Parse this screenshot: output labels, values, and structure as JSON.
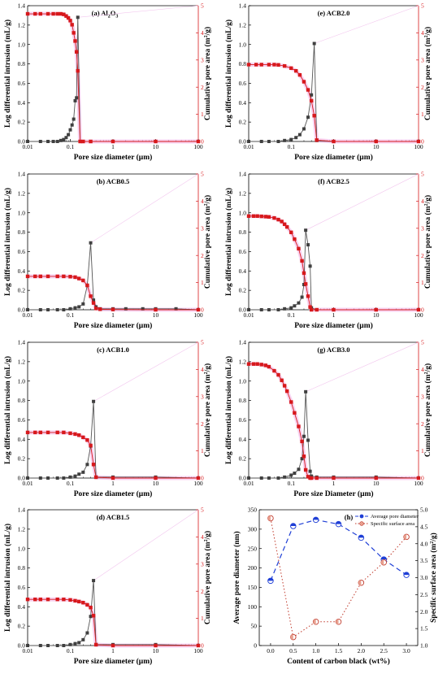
{
  "chart_data": [
    {
      "type": "line",
      "title": "(a) Al2O3",
      "title_parts": {
        "main": "(a) Al",
        "s1": "2",
        "mid": "O",
        "s2": "3"
      },
      "xlabel": "Pore size diameter (μm)",
      "ylabel": "Log differential intrusion (mL/g)",
      "y2label": "Cumulative pore area (m2/g)",
      "y2label_parts": {
        "main": "Cumulative pore area (m",
        "sup": "2",
        "end": "/g)"
      },
      "xscale": "log",
      "xlim": [
        0.01,
        100
      ],
      "ylim": [
        0,
        1.4
      ],
      "y2lim": [
        0,
        5
      ],
      "xticks": [
        "0.01",
        "0.1",
        "1",
        "10",
        "100"
      ],
      "yticks": [
        "0.0",
        "0.2",
        "0.4",
        "0.6",
        "0.8",
        "1.0",
        "1.2",
        "1.4"
      ],
      "y2ticks": [
        "0",
        "1",
        "2",
        "3",
        "4",
        "5"
      ],
      "series": [
        {
          "role": "intrusion",
          "axis": "left",
          "color": "#404040",
          "x": [
            0.01,
            0.02,
            0.03,
            0.04,
            0.05,
            0.06,
            0.07,
            0.08,
            0.09,
            0.1,
            0.11,
            0.12,
            0.13,
            0.14,
            0.15,
            0.17,
            0.2,
            0.3,
            1,
            10,
            100
          ],
          "y": [
            0,
            0,
            0,
            0,
            0,
            0.01,
            0.02,
            0.04,
            0.07,
            0.12,
            0.17,
            0.23,
            0.42,
            0.45,
            1.28,
            0,
            0,
            0,
            0,
            0,
            0
          ]
        },
        {
          "role": "area",
          "axis": "right",
          "color": "#d7191c",
          "x": [
            0.01,
            0.015,
            0.02,
            0.03,
            0.04,
            0.05,
            0.06,
            0.07,
            0.08,
            0.09,
            0.1,
            0.11,
            0.12,
            0.13,
            0.14,
            0.15,
            0.17,
            0.2,
            0.3,
            1,
            10,
            100
          ],
          "y": [
            4.7,
            4.7,
            4.7,
            4.7,
            4.7,
            4.7,
            4.7,
            4.68,
            4.62,
            4.55,
            4.45,
            4.3,
            4.0,
            3.7,
            3.3,
            2.6,
            0,
            0,
            0,
            0,
            0,
            0
          ]
        }
      ]
    },
    {
      "type": "line",
      "title": "(b) ACB0.5",
      "xlabel": "Pore size diameter (μm)",
      "ylabel": "Log differential intrusion (mL/g)",
      "y2label": "Cumulative pore area (m2/g)",
      "y2label_parts": {
        "main": "Cumulative pore area (m",
        "sup": "2",
        "end": "/g)"
      },
      "xscale": "log",
      "xlim": [
        0.01,
        100
      ],
      "ylim": [
        0,
        1.4
      ],
      "y2lim": [
        0,
        5
      ],
      "xticks": [
        "0.01",
        "0.1",
        "1",
        "10",
        "100"
      ],
      "yticks": [
        "0.0",
        "0.2",
        "0.4",
        "0.6",
        "0.8",
        "1.0",
        "1.2",
        "1.4"
      ],
      "y2ticks": [
        "0",
        "1",
        "2",
        "3",
        "4",
        "5"
      ],
      "series": [
        {
          "role": "intrusion",
          "axis": "left",
          "color": "#404040",
          "x": [
            0.01,
            0.02,
            0.03,
            0.05,
            0.07,
            0.1,
            0.13,
            0.16,
            0.2,
            0.25,
            0.3,
            0.35,
            0.4,
            0.5,
            1,
            2,
            5,
            10,
            30,
            100
          ],
          "y": [
            0,
            0,
            0,
            0,
            0,
            0.01,
            0.02,
            0.03,
            0.06,
            0.25,
            0.69,
            0.1,
            0.03,
            0.01,
            0.01,
            0.01,
            0.01,
            0.01,
            0.01,
            0
          ]
        },
        {
          "role": "area",
          "axis": "right",
          "color": "#d7191c",
          "x": [
            0.01,
            0.015,
            0.02,
            0.03,
            0.05,
            0.07,
            0.1,
            0.13,
            0.16,
            0.2,
            0.25,
            0.3,
            0.35,
            0.4,
            0.5,
            1,
            10,
            100
          ],
          "y": [
            1.23,
            1.23,
            1.23,
            1.23,
            1.23,
            1.23,
            1.22,
            1.2,
            1.15,
            1.08,
            0.9,
            0.5,
            0.25,
            0.05,
            0.02,
            0.01,
            0,
            0
          ]
        }
      ]
    },
    {
      "type": "line",
      "title": "(c) ACB1.0",
      "xlabel": "Pore size diameter (μm)",
      "ylabel": "Log differential intrusion (mL/g)",
      "y2label": "Cumulative pore area (m2/g)",
      "y2label_parts": {
        "main": "Cumulative pore area (m",
        "sup": "2",
        "end": "/g)"
      },
      "xscale": "log",
      "xlim": [
        0.01,
        100
      ],
      "ylim": [
        0,
        1.4
      ],
      "y2lim": [
        0,
        5
      ],
      "xticks": [
        "0.01",
        "0.1",
        "1",
        "10",
        "100"
      ],
      "yticks": [
        "0.0",
        "0.2",
        "0.4",
        "0.6",
        "0.8",
        "1.0",
        "1.2",
        "1.4"
      ],
      "y2ticks": [
        "0",
        "1",
        "2",
        "3",
        "4",
        "5"
      ],
      "series": [
        {
          "role": "intrusion",
          "axis": "left",
          "color": "#404040",
          "x": [
            0.01,
            0.02,
            0.03,
            0.05,
            0.07,
            0.1,
            0.13,
            0.16,
            0.2,
            0.25,
            0.3,
            0.35,
            0.4,
            1,
            10,
            100
          ],
          "y": [
            0,
            0,
            0,
            0,
            0,
            0.01,
            0.02,
            0.04,
            0.06,
            0.14,
            0.33,
            0.79,
            0.01,
            0.01,
            0.01,
            0
          ]
        },
        {
          "role": "area",
          "axis": "right",
          "color": "#d7191c",
          "x": [
            0.01,
            0.015,
            0.02,
            0.03,
            0.05,
            0.07,
            0.1,
            0.13,
            0.16,
            0.2,
            0.25,
            0.3,
            0.35,
            0.4,
            1,
            10,
            100
          ],
          "y": [
            1.68,
            1.68,
            1.68,
            1.68,
            1.68,
            1.68,
            1.65,
            1.62,
            1.58,
            1.5,
            1.4,
            1.2,
            0.5,
            0.03,
            0,
            0,
            0
          ]
        }
      ]
    },
    {
      "type": "line",
      "title": "(d) ACB1.5",
      "xlabel": "Pore size diameter (μm)",
      "ylabel": "Log differential intrusion (mL/g)",
      "y2label": "Cumulative pore area (m2/g)",
      "y2label_parts": {
        "main": "Cumulative pore area (m",
        "sup": "2",
        "end": "/g)"
      },
      "xscale": "log",
      "xlim": [
        0.01,
        100
      ],
      "ylim": [
        0,
        1.4
      ],
      "y2lim": [
        0,
        5
      ],
      "xticks": [
        "0.01",
        "0.1",
        "1",
        "10",
        "100"
      ],
      "yticks": [
        "0.0",
        "0.2",
        "0.4",
        "0.6",
        "0.8",
        "1.0",
        "1.2",
        "1.4"
      ],
      "y2ticks": [
        "0",
        "1",
        "2",
        "3",
        "4",
        "5"
      ],
      "series": [
        {
          "role": "intrusion",
          "axis": "left",
          "color": "#404040",
          "x": [
            0.01,
            0.02,
            0.03,
            0.05,
            0.07,
            0.1,
            0.13,
            0.16,
            0.2,
            0.25,
            0.3,
            0.35,
            0.4,
            1,
            10,
            100
          ],
          "y": [
            0,
            0,
            0,
            0,
            0,
            0.01,
            0.02,
            0.03,
            0.06,
            0.13,
            0.3,
            0.67,
            0.01,
            0.01,
            0.01,
            0
          ]
        },
        {
          "role": "area",
          "axis": "right",
          "color": "#d7191c",
          "x": [
            0.01,
            0.015,
            0.02,
            0.03,
            0.05,
            0.07,
            0.1,
            0.13,
            0.16,
            0.2,
            0.25,
            0.3,
            0.35,
            0.4,
            1,
            10,
            100
          ],
          "y": [
            1.7,
            1.7,
            1.7,
            1.7,
            1.7,
            1.7,
            1.68,
            1.65,
            1.62,
            1.58,
            1.5,
            1.4,
            1.1,
            0.03,
            0,
            0,
            0
          ]
        }
      ]
    },
    {
      "type": "line",
      "title": "(e) ACB2.0",
      "xlabel": "Pore size diameter (μm)",
      "ylabel": "Log differential intrusion (mL/g)",
      "y2label": "Cumulative pore area (m2/g)",
      "y2label_parts": {
        "main": "Cumulative pore area (m",
        "sup": "2",
        "end": "/g)"
      },
      "xscale": "log",
      "xlim": [
        0.01,
        100
      ],
      "ylim": [
        0,
        1.4
      ],
      "y2lim": [
        0,
        5
      ],
      "xticks": [
        "0.01",
        "0.1",
        "1",
        "10",
        "100"
      ],
      "yticks": [
        "0.0",
        "0.2",
        "0.4",
        "0.6",
        "0.8",
        "1.0",
        "1.2",
        "1.4"
      ],
      "y2ticks": [
        "0",
        "1",
        "2",
        "3",
        "4",
        "5"
      ],
      "series": [
        {
          "role": "intrusion",
          "axis": "left",
          "color": "#404040",
          "x": [
            0.01,
            0.02,
            0.03,
            0.05,
            0.07,
            0.1,
            0.13,
            0.16,
            0.2,
            0.25,
            0.3,
            0.35,
            0.4,
            1,
            10,
            100
          ],
          "y": [
            0,
            0,
            0,
            0,
            0.01,
            0.02,
            0.04,
            0.07,
            0.13,
            0.25,
            0.48,
            1.01,
            0.01,
            0,
            0,
            0
          ]
        },
        {
          "role": "area",
          "axis": "right",
          "color": "#d7191c",
          "x": [
            0.01,
            0.015,
            0.02,
            0.03,
            0.04,
            0.05,
            0.07,
            0.1,
            0.13,
            0.16,
            0.2,
            0.25,
            0.3,
            0.35,
            0.4,
            1,
            10,
            100
          ],
          "y": [
            2.83,
            2.83,
            2.83,
            2.83,
            2.83,
            2.82,
            2.78,
            2.7,
            2.6,
            2.45,
            2.2,
            1.9,
            1.5,
            0.95,
            0.05,
            0,
            0,
            0
          ]
        }
      ]
    },
    {
      "type": "line",
      "title": "(f) ACB2.5",
      "xlabel": "Pore size diameter (μm)",
      "ylabel": "Log differential intrusion (mL/g)",
      "y2label": "Cumulative pore area (m2/g)",
      "y2label_parts": {
        "main": "Cumulative pore area (m",
        "sup": "2",
        "end": "/g)"
      },
      "xscale": "log",
      "xlim": [
        0.01,
        100
      ],
      "ylim": [
        0,
        1.4
      ],
      "y2lim": [
        0,
        5
      ],
      "xticks": [
        "0.01",
        "0.1",
        "1",
        "10",
        "100"
      ],
      "yticks": [
        "0.0",
        "0.2",
        "0.4",
        "0.6",
        "0.8",
        "1.0",
        "1.2",
        "1.4"
      ],
      "y2ticks": [
        "0",
        "1",
        "2",
        "3",
        "4",
        "5"
      ],
      "series": [
        {
          "role": "intrusion",
          "axis": "left",
          "color": "#404040",
          "x": [
            0.01,
            0.02,
            0.03,
            0.05,
            0.07,
            0.1,
            0.12,
            0.15,
            0.18,
            0.2,
            0.22,
            0.25,
            0.28,
            0.3,
            0.4,
            1,
            10,
            100
          ],
          "y": [
            0,
            0,
            0,
            0,
            0.01,
            0.02,
            0.04,
            0.07,
            0.13,
            0.26,
            0.82,
            0.67,
            0.45,
            0.02,
            0,
            0,
            0,
            0
          ]
        },
        {
          "role": "area",
          "axis": "right",
          "color": "#d7191c",
          "x": [
            0.01,
            0.013,
            0.016,
            0.02,
            0.025,
            0.03,
            0.04,
            0.05,
            0.06,
            0.07,
            0.08,
            0.1,
            0.12,
            0.15,
            0.18,
            0.2,
            0.22,
            0.25,
            0.28,
            0.3,
            0.4,
            1,
            10,
            100
          ],
          "y": [
            3.45,
            3.45,
            3.45,
            3.44,
            3.43,
            3.42,
            3.38,
            3.32,
            3.25,
            3.15,
            3.05,
            2.85,
            2.6,
            2.25,
            1.8,
            1.35,
            0.95,
            0.5,
            0.1,
            0,
            0,
            0,
            0,
            0
          ]
        }
      ]
    },
    {
      "type": "line",
      "title": "(g) ACB3.0",
      "xlabel": "Pore size Diameter (μm)",
      "ylabel": "Log differential intrusion (mL/g)",
      "y2label": "Cumulative pore area (m2/g)",
      "y2label_parts": {
        "main": "Cumulative pore area (m",
        "sup": "2",
        "end": "/g)"
      },
      "xscale": "log",
      "xlim": [
        0.01,
        100
      ],
      "ylim": [
        0,
        1.4
      ],
      "y2lim": [
        0,
        5
      ],
      "xticks": [
        "0.01",
        "0.1",
        "1",
        "10",
        "100"
      ],
      "yticks": [
        "0.0",
        "0.2",
        "0.4",
        "0.6",
        "0.8",
        "1.0",
        "1.2",
        "1.4"
      ],
      "y2ticks": [
        "0",
        "1",
        "2",
        "3",
        "4",
        "5"
      ],
      "series": [
        {
          "role": "intrusion",
          "axis": "left",
          "color": "#404040",
          "x": [
            0.01,
            0.02,
            0.03,
            0.05,
            0.07,
            0.1,
            0.12,
            0.15,
            0.18,
            0.2,
            0.22,
            0.25,
            0.28,
            0.3,
            0.4,
            1,
            10,
            100
          ],
          "y": [
            0,
            0,
            0,
            0,
            0.01,
            0.03,
            0.05,
            0.09,
            0.2,
            0.43,
            0.89,
            0.39,
            0.07,
            0.02,
            0.01,
            0.01,
            0.01,
            0
          ]
        },
        {
          "role": "area",
          "axis": "right",
          "color": "#d7191c",
          "x": [
            0.01,
            0.013,
            0.016,
            0.02,
            0.025,
            0.03,
            0.04,
            0.05,
            0.06,
            0.07,
            0.08,
            0.1,
            0.12,
            0.15,
            0.18,
            0.2,
            0.22,
            0.25,
            0.28,
            0.3,
            0.4,
            1,
            10,
            100
          ],
          "y": [
            4.2,
            4.2,
            4.2,
            4.18,
            4.15,
            4.1,
            3.95,
            3.8,
            3.6,
            3.4,
            3.2,
            2.8,
            2.4,
            1.9,
            1.35,
            0.8,
            0.3,
            0.05,
            0,
            0,
            0,
            0,
            0,
            0
          ]
        }
      ]
    },
    {
      "type": "line",
      "title": "(h)",
      "xlabel": "Content of carbon black (wt%)",
      "ylabel": "Average pore diameter (nm)",
      "y2label": "Specific surface area (m2/g)",
      "y2label_parts": {
        "main": "Specific surface area (m",
        "sup": "2",
        "end": "/g)"
      },
      "xlim": [
        -0.25,
        3.25
      ],
      "ylim": [
        0,
        350
      ],
      "y2lim": [
        1.0,
        5.0
      ],
      "xticks": [
        "0.0",
        "0.5",
        "1.0",
        "1.5",
        "2.0",
        "2.5",
        "3.0"
      ],
      "yticks": [
        "0",
        "50",
        "100",
        "150",
        "200",
        "250",
        "300",
        "350"
      ],
      "y2ticks": [
        "1.0",
        "1.5",
        "2.0",
        "2.5",
        "3.0",
        "3.5",
        "4.0",
        "4.5",
        "5.0"
      ],
      "legend": "top-right",
      "series": [
        {
          "name": "Average pore diameter",
          "axis": "left",
          "color": "#1f3fd6",
          "style": "dashed",
          "x": [
            0.0,
            0.5,
            1.0,
            1.5,
            2.0,
            2.5,
            3.0
          ],
          "y": [
            167,
            308,
            324,
            313,
            278,
            222,
            182
          ]
        },
        {
          "name": "Specific surface area",
          "axis": "right",
          "color": "#c0392b",
          "style": "dotted",
          "x": [
            0.0,
            0.5,
            1.0,
            1.5,
            2.0,
            2.5,
            3.0
          ],
          "y": [
            4.75,
            1.25,
            1.7,
            1.7,
            2.85,
            3.45,
            4.2
          ]
        }
      ]
    }
  ]
}
